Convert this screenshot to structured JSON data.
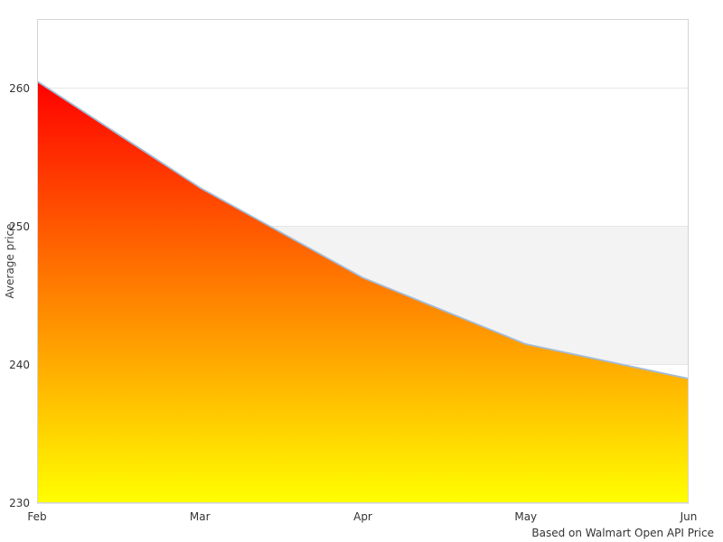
{
  "chart_data": {
    "type": "area",
    "title": "",
    "categories": [
      "Feb",
      "Mar",
      "Apr",
      "May",
      "Jun"
    ],
    "values": [
      260.5,
      252.8,
      246.3,
      241.5,
      239.0
    ],
    "series_name": "Average price",
    "xlabel": "",
    "ylabel": "Average price",
    "caption": "Based on Walmart Open API Price",
    "ylim": [
      230,
      265
    ],
    "y_ticks": [
      230,
      240,
      250,
      260
    ],
    "grid": true,
    "legend": "none",
    "plot_band": {
      "from": 240,
      "to": 250
    },
    "colors": {
      "gradient_top": "#ff0000",
      "gradient_bottom": "#ffff00",
      "line": "#a2bcd9",
      "gridline": "#e6e6e6",
      "plot_band": "#f3f3f3",
      "plot_border": "#d4d4d4",
      "text": "#333333",
      "background": "#ffffff"
    }
  }
}
